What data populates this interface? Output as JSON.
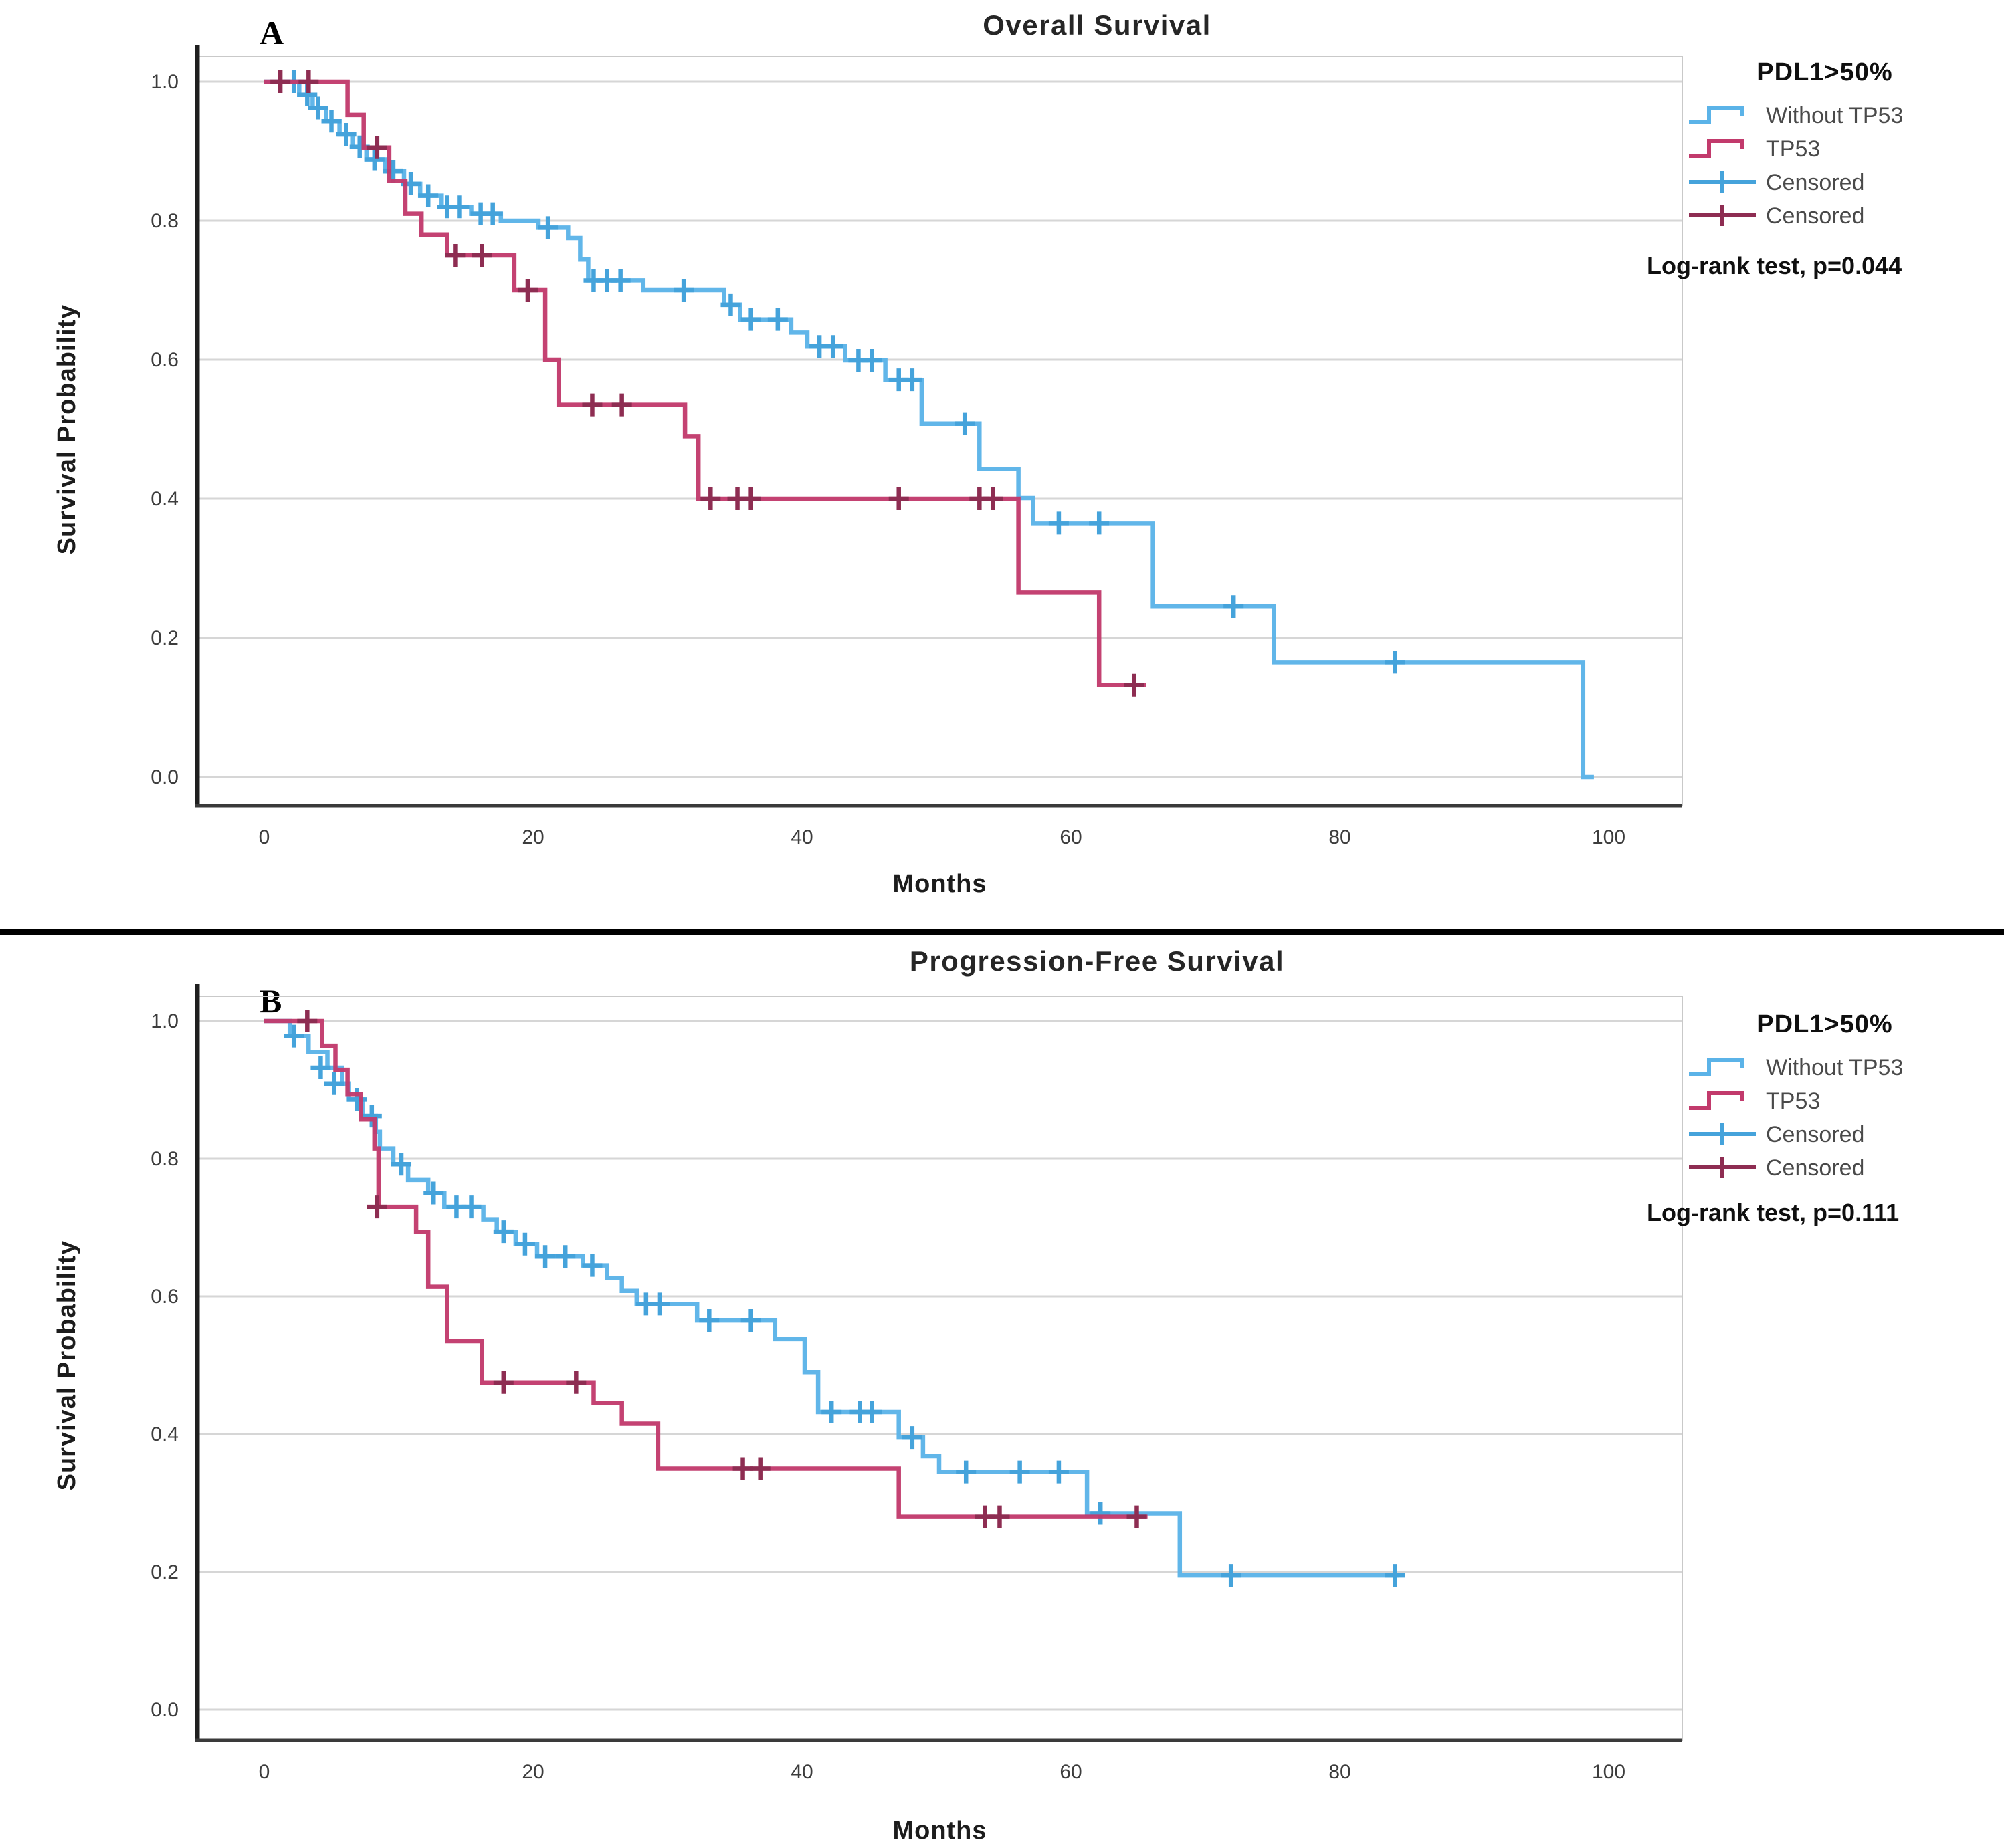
{
  "figure": {
    "background": "#ffffff",
    "divider_color": "#000000"
  },
  "colors": {
    "without_tp53_line": "#5BB3E8",
    "without_tp53_censor": "#45A3DB",
    "tp53_line": "#C23A6C",
    "tp53_censor": "#8E2D52",
    "gridline": "#D6D6D6",
    "plot_frame": "#C9C9C9",
    "y_axis": "#1F1F1F",
    "x_axis": "#3A3A3A"
  },
  "chart_data": [
    {
      "type": "line",
      "subtype": "kaplan-meier-step",
      "panel_label": "A",
      "title": "Overall Survival",
      "xlabel": "Months",
      "ylabel": "Survival Probability",
      "x_ticks": [
        0,
        20,
        40,
        60,
        80,
        100
      ],
      "y_ticks": [
        "0.0",
        "0.2",
        "0.4",
        "0.6",
        "0.8",
        "1.0"
      ],
      "xlim": [
        -5,
        105
      ],
      "ylim": [
        0.0,
        1.0
      ],
      "grid": "horizontal",
      "legend_position": "right",
      "legend": {
        "title": "PDL1>50%",
        "items": [
          {
            "label": "Without TP53",
            "swatch": "step",
            "color": "#5BB3E8"
          },
          {
            "label": "TP53",
            "swatch": "step",
            "color": "#C23A6C"
          },
          {
            "label": "Censored",
            "swatch": "plus",
            "color": "#45A3DB"
          },
          {
            "label": "Censored",
            "swatch": "plus",
            "color": "#8E2D52"
          }
        ]
      },
      "annotation": "Log-rank test, p=0.044",
      "series": [
        {
          "name": "Without TP53",
          "color": "#5BB3E8",
          "censor_color": "#45A3DB",
          "start": [
            0,
            1.0
          ],
          "drops": [
            [
              2.6,
              0.981
            ],
            [
              3.6,
              0.962
            ],
            [
              4.6,
              0.943
            ],
            [
              5.6,
              0.924
            ],
            [
              6.6,
              0.906
            ],
            [
              7.6,
              0.888
            ],
            [
              9.0,
              0.871
            ],
            [
              10.4,
              0.853
            ],
            [
              11.6,
              0.836
            ],
            [
              13.2,
              0.82
            ],
            [
              15.4,
              0.81
            ],
            [
              17.6,
              0.8
            ],
            [
              20.4,
              0.79
            ],
            [
              22.6,
              0.775
            ],
            [
              23.5,
              0.744
            ],
            [
              24.1,
              0.714
            ],
            [
              28.2,
              0.7
            ],
            [
              34.2,
              0.679
            ],
            [
              35.4,
              0.658
            ],
            [
              39.2,
              0.639
            ],
            [
              40.4,
              0.619
            ],
            [
              43.2,
              0.599
            ],
            [
              46.2,
              0.571
            ],
            [
              48.9,
              0.508
            ],
            [
              53.2,
              0.443
            ],
            [
              56.1,
              0.401
            ],
            [
              57.2,
              0.365
            ],
            [
              66.1,
              0.245
            ],
            [
              75.1,
              0.165
            ],
            [
              98.1,
              0.0
            ]
          ],
          "end": 98.9,
          "censors": [
            [
              2.2,
              1.0
            ],
            [
              3.2,
              0.981
            ],
            [
              4.0,
              0.962
            ],
            [
              5.0,
              0.943
            ],
            [
              6.1,
              0.924
            ],
            [
              7.1,
              0.906
            ],
            [
              8.2,
              0.888
            ],
            [
              9.6,
              0.871
            ],
            [
              10.9,
              0.853
            ],
            [
              12.2,
              0.836
            ],
            [
              13.6,
              0.82
            ],
            [
              14.5,
              0.82
            ],
            [
              16.1,
              0.81
            ],
            [
              17.0,
              0.81
            ],
            [
              21.1,
              0.79
            ],
            [
              24.5,
              0.714
            ],
            [
              25.5,
              0.714
            ],
            [
              26.5,
              0.714
            ],
            [
              31.2,
              0.7
            ],
            [
              34.7,
              0.679
            ],
            [
              36.2,
              0.658
            ],
            [
              38.2,
              0.658
            ],
            [
              41.3,
              0.619
            ],
            [
              42.3,
              0.619
            ],
            [
              44.2,
              0.599
            ],
            [
              45.2,
              0.599
            ],
            [
              47.2,
              0.571
            ],
            [
              48.2,
              0.571
            ],
            [
              52.1,
              0.508
            ],
            [
              59.1,
              0.365
            ],
            [
              62.1,
              0.365
            ],
            [
              72.1,
              0.245
            ],
            [
              84.1,
              0.165
            ]
          ]
        },
        {
          "name": "TP53",
          "color": "#C23A6C",
          "censor_color": "#8E2D52",
          "start": [
            0,
            1.0
          ],
          "drops": [
            [
              6.2,
              0.952
            ],
            [
              7.4,
              0.905
            ],
            [
              9.3,
              0.857
            ],
            [
              10.5,
              0.81
            ],
            [
              11.7,
              0.78
            ],
            [
              13.6,
              0.75
            ],
            [
              18.6,
              0.7
            ],
            [
              20.9,
              0.6
            ],
            [
              21.9,
              0.535
            ],
            [
              31.3,
              0.49
            ],
            [
              32.3,
              0.4
            ],
            [
              56.1,
              0.265
            ],
            [
              62.1,
              0.132
            ]
          ],
          "end": 65.6,
          "censors": [
            [
              1.2,
              1.0
            ],
            [
              3.3,
              1.0
            ],
            [
              8.4,
              0.905
            ],
            [
              14.2,
              0.75
            ],
            [
              16.2,
              0.75
            ],
            [
              19.6,
              0.7
            ],
            [
              24.4,
              0.535
            ],
            [
              26.6,
              0.535
            ],
            [
              33.2,
              0.4
            ],
            [
              35.2,
              0.4
            ],
            [
              36.2,
              0.4
            ],
            [
              47.2,
              0.4
            ],
            [
              53.2,
              0.4
            ],
            [
              54.2,
              0.4
            ],
            [
              64.7,
              0.132
            ]
          ]
        }
      ]
    },
    {
      "type": "line",
      "subtype": "kaplan-meier-step",
      "panel_label": "B",
      "title": "Progression-Free Survival",
      "xlabel": "Months",
      "ylabel": "Survival Probability",
      "x_ticks": [
        0,
        20,
        40,
        60,
        80,
        100
      ],
      "y_ticks": [
        "0.0",
        "0.2",
        "0.4",
        "0.6",
        "0.8",
        "1.0"
      ],
      "xlim": [
        -5,
        105
      ],
      "ylim": [
        0.0,
        1.0
      ],
      "grid": "horizontal",
      "legend_position": "right",
      "legend": {
        "title": "PDL1>50%",
        "items": [
          {
            "label": "Without TP53",
            "swatch": "step",
            "color": "#5BB3E8"
          },
          {
            "label": "TP53",
            "swatch": "step",
            "color": "#C23A6C"
          },
          {
            "label": "Censored",
            "swatch": "plus",
            "color": "#45A3DB"
          },
          {
            "label": "Censored",
            "swatch": "plus",
            "color": "#8E2D52"
          }
        ]
      },
      "annotation": "Log-rank test, p=0.111",
      "series": [
        {
          "name": "Without TP53",
          "color": "#5BB3E8",
          "censor_color": "#45A3DB",
          "start": [
            0,
            1.0
          ],
          "drops": [
            [
              1.9,
              0.978
            ],
            [
              3.3,
              0.955
            ],
            [
              4.7,
              0.932
            ],
            [
              5.8,
              0.909
            ],
            [
              6.3,
              0.886
            ],
            [
              7.3,
              0.862
            ],
            [
              8.3,
              0.839
            ],
            [
              8.6,
              0.815
            ],
            [
              9.6,
              0.792
            ],
            [
              10.7,
              0.769
            ],
            [
              12.2,
              0.75
            ],
            [
              13.4,
              0.73
            ],
            [
              16.3,
              0.712
            ],
            [
              17.3,
              0.694
            ],
            [
              18.7,
              0.676
            ],
            [
              20.3,
              0.658
            ],
            [
              23.7,
              0.645
            ],
            [
              25.5,
              0.627
            ],
            [
              26.6,
              0.608
            ],
            [
              27.7,
              0.589
            ],
            [
              32.2,
              0.565
            ],
            [
              38.0,
              0.538
            ],
            [
              40.2,
              0.49
            ],
            [
              41.2,
              0.432
            ],
            [
              47.2,
              0.395
            ],
            [
              49.0,
              0.368
            ],
            [
              50.2,
              0.345
            ],
            [
              61.2,
              0.285
            ],
            [
              68.1,
              0.195
            ]
          ],
          "end": 84.4,
          "censors": [
            [
              2.2,
              0.978
            ],
            [
              4.2,
              0.932
            ],
            [
              5.2,
              0.909
            ],
            [
              6.9,
              0.886
            ],
            [
              8.0,
              0.862
            ],
            [
              10.2,
              0.792
            ],
            [
              12.6,
              0.75
            ],
            [
              14.3,
              0.73
            ],
            [
              15.4,
              0.73
            ],
            [
              17.8,
              0.694
            ],
            [
              19.4,
              0.676
            ],
            [
              20.9,
              0.658
            ],
            [
              22.4,
              0.658
            ],
            [
              24.4,
              0.645
            ],
            [
              28.4,
              0.589
            ],
            [
              29.4,
              0.589
            ],
            [
              33.1,
              0.565
            ],
            [
              36.2,
              0.565
            ],
            [
              42.2,
              0.432
            ],
            [
              44.3,
              0.432
            ],
            [
              45.2,
              0.432
            ],
            [
              48.2,
              0.395
            ],
            [
              52.2,
              0.345
            ],
            [
              56.2,
              0.345
            ],
            [
              59.1,
              0.345
            ],
            [
              62.2,
              0.285
            ],
            [
              71.9,
              0.195
            ],
            [
              84.1,
              0.195
            ]
          ]
        },
        {
          "name": "TP53",
          "color": "#C23A6C",
          "censor_color": "#8E2D52",
          "start": [
            0,
            1.0
          ],
          "drops": [
            [
              4.3,
              0.964
            ],
            [
              5.3,
              0.929
            ],
            [
              6.2,
              0.893
            ],
            [
              7.2,
              0.857
            ],
            [
              8.2,
              0.815
            ],
            [
              8.5,
              0.73
            ],
            [
              11.3,
              0.694
            ],
            [
              12.2,
              0.614
            ],
            [
              13.6,
              0.535
            ],
            [
              16.2,
              0.475
            ],
            [
              24.5,
              0.445
            ],
            [
              26.6,
              0.415
            ],
            [
              29.3,
              0.35
            ],
            [
              47.2,
              0.28
            ]
          ],
          "end": 65.7,
          "censors": [
            [
              3.2,
              1.0
            ],
            [
              8.4,
              0.73
            ],
            [
              17.8,
              0.475
            ],
            [
              23.2,
              0.475
            ],
            [
              35.6,
              0.35
            ],
            [
              36.9,
              0.35
            ],
            [
              53.6,
              0.28
            ],
            [
              54.7,
              0.28
            ],
            [
              64.9,
              0.28
            ]
          ]
        }
      ]
    }
  ]
}
